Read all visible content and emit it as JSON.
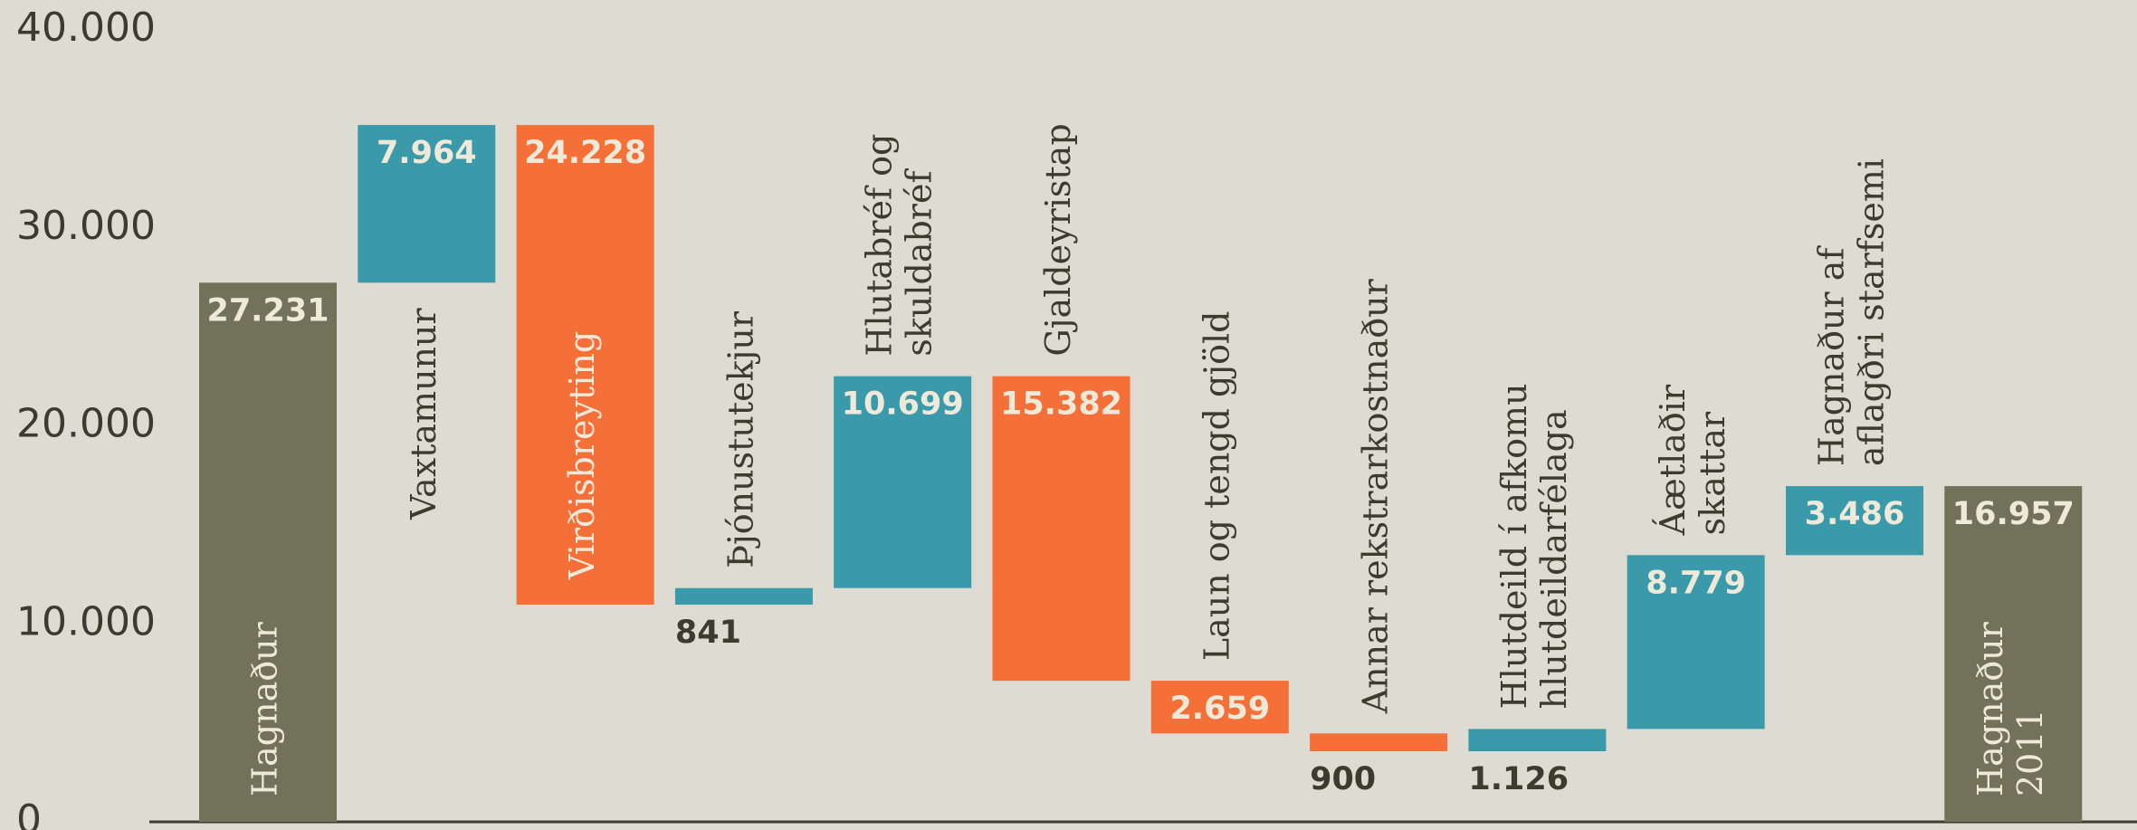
{
  "chart_data": {
    "type": "waterfall",
    "categories": [
      [
        "Hagnaður"
      ],
      [
        "Vaxtamunur"
      ],
      [
        "Virðisbreyting"
      ],
      [
        "Þjónustutekjur"
      ],
      [
        "Hlutabréf og",
        "skuldabréf"
      ],
      [
        "Gjaldeyristap"
      ],
      [
        "Laun og tengd gjöld"
      ],
      [
        "Annar rekstrarkostnaður"
      ],
      [
        "Hlutdeild í afkomu",
        "hlutdeildarfélaga"
      ],
      [
        "Áætlaðir",
        "skattar"
      ],
      [
        "Hagnaður af",
        "aflagðri starfsemi"
      ],
      [
        "Hagnaður",
        "2011"
      ]
    ],
    "measure": [
      "absolute",
      "relative",
      "relative",
      "relative",
      "relative",
      "relative",
      "relative",
      "relative",
      "relative",
      "relative",
      "relative",
      "absolute"
    ],
    "values": [
      27231,
      7964,
      -24228,
      841,
      10699,
      -15382,
      -2659,
      -900,
      1126,
      8779,
      3486,
      16957
    ],
    "value_labels": [
      "27.231",
      "7.964",
      "24.228",
      "841",
      "10.699",
      "15.382",
      "2.659",
      "900",
      "1.126",
      "8.779",
      "3.486",
      "16.957"
    ],
    "colors": [
      "#72725a",
      "#3a9aaa",
      "#f47038",
      "#3a9aaa",
      "#3a9aaa",
      "#f47038",
      "#f47038",
      "#f47038",
      "#3a9aaa",
      "#3a9aaa",
      "#3a9aaa",
      "#72725a"
    ],
    "ylim": [
      0,
      40000
    ],
    "yticks": [
      {
        "value": 0,
        "label": "0"
      },
      {
        "value": 10000,
        "label": "10.000"
      },
      {
        "value": 20000,
        "label": "20.000"
      },
      {
        "value": 30000,
        "label": "30.000"
      },
      {
        "value": 40000,
        "label": "40.000"
      }
    ]
  }
}
